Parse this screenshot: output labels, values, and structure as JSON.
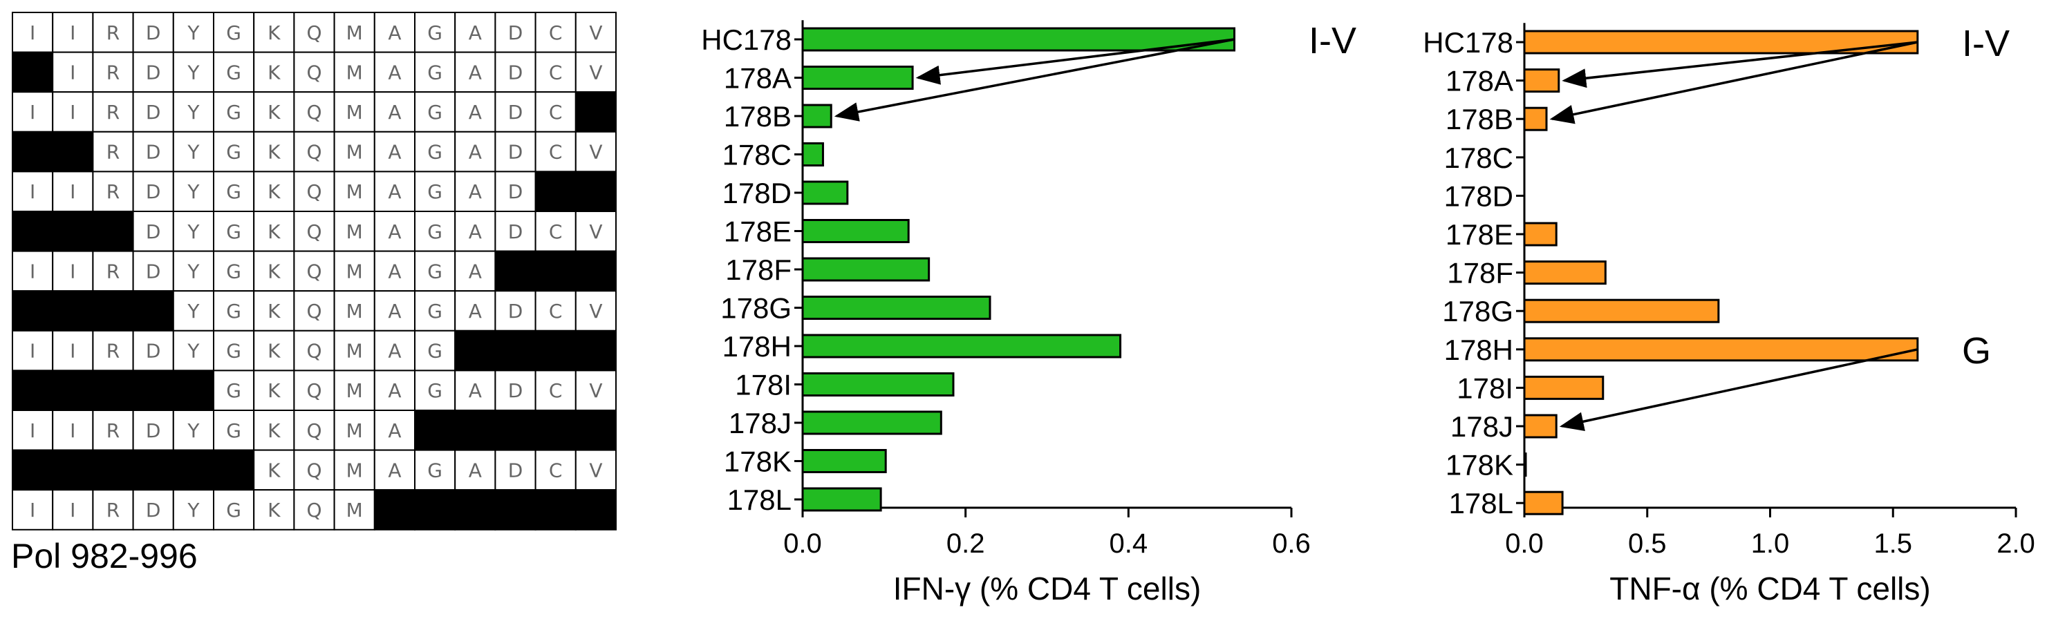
{
  "peptide_grid": {
    "caption": "Pol 982-996",
    "residues": [
      "I",
      "I",
      "R",
      "D",
      "Y",
      "G",
      "K",
      "Q",
      "M",
      "A",
      "G",
      "A",
      "D",
      "C",
      "V"
    ],
    "rows": [
      {
        "start": 0,
        "end": 15
      },
      {
        "start": 1,
        "end": 15
      },
      {
        "start": 0,
        "end": 14
      },
      {
        "start": 2,
        "end": 15
      },
      {
        "start": 0,
        "end": 13
      },
      {
        "start": 3,
        "end": 15
      },
      {
        "start": 0,
        "end": 12
      },
      {
        "start": 4,
        "end": 15
      },
      {
        "start": 0,
        "end": 11
      },
      {
        "start": 5,
        "end": 15
      },
      {
        "start": 0,
        "end": 10
      },
      {
        "start": 6,
        "end": 15
      },
      {
        "start": 0,
        "end": 9
      }
    ]
  },
  "chart_data": [
    {
      "type": "bar",
      "orientation": "horizontal",
      "categories": [
        "HC178",
        "178A",
        "178B",
        "178C",
        "178D",
        "178E",
        "178F",
        "178G",
        "178H",
        "178I",
        "178J",
        "178K",
        "178L"
      ],
      "values": [
        0.53,
        0.135,
        0.035,
        0.025,
        0.055,
        0.13,
        0.155,
        0.23,
        0.39,
        0.185,
        0.17,
        0.102,
        0.096
      ],
      "xlabel": "IFN-γ (% CD4 T cells)",
      "xlim": [
        0,
        0.6
      ],
      "xticks": [
        "0.0",
        "0.2",
        "0.4",
        "0.6"
      ],
      "tick_values": [
        0,
        0.2,
        0.4,
        0.6
      ],
      "color": "#22bb22",
      "annotations": [
        {
          "text": "I-V",
          "from": "HC178",
          "arrows_to": [
            "178A",
            "178B"
          ]
        }
      ]
    },
    {
      "type": "bar",
      "orientation": "horizontal",
      "categories": [
        "HC178",
        "178A",
        "178B",
        "178C",
        "178D",
        "178E",
        "178F",
        "178G",
        "178H",
        "178I",
        "178J",
        "178K",
        "178L"
      ],
      "values": [
        1.6,
        0.14,
        0.09,
        0,
        0,
        0.13,
        0.33,
        0.79,
        1.6,
        0.32,
        0.13,
        0.005,
        0.155
      ],
      "xlabel": "TNF-α (% CD4 T cells)",
      "xlim": [
        0,
        2.0
      ],
      "xticks": [
        "0.0",
        "0.5",
        "1.0",
        "1.5",
        "2.0"
      ],
      "tick_values": [
        0,
        0.5,
        1.0,
        1.5,
        2.0
      ],
      "color": "#ff9922",
      "annotations": [
        {
          "text": "I-V",
          "from": "HC178",
          "arrows_to": [
            "178A",
            "178B"
          ]
        },
        {
          "text": "G",
          "from": "178H",
          "arrows_to": [
            "178J"
          ]
        }
      ]
    }
  ]
}
